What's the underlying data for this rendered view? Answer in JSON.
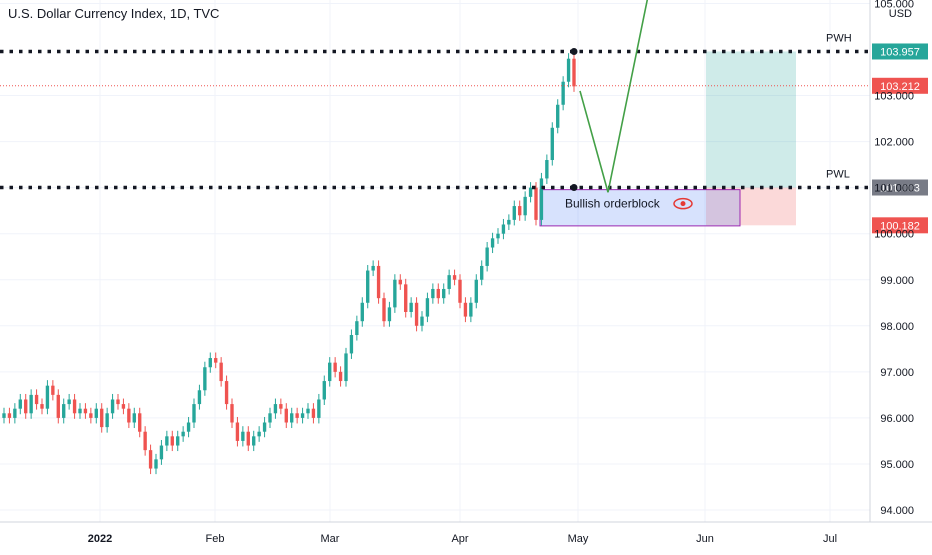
{
  "header": {
    "title": "U.S. Dollar Currency Index, 1D, TVC"
  },
  "chart_data": {
    "type": "candlestick",
    "title": "U.S. Dollar Currency Index, 1D, TVC",
    "currency": "USD",
    "x_axis": {
      "ticks": [
        "2022",
        "Feb",
        "Mar",
        "Apr",
        "May",
        "Jun",
        "Jul"
      ]
    },
    "y_axis": {
      "ticks": [
        94.0,
        95.0,
        96.0,
        97.0,
        98.0,
        99.0,
        100.0,
        101.0,
        102.0,
        103.0,
        105.0
      ],
      "range": [
        93.6,
        105.0
      ]
    },
    "levels": [
      {
        "label": "PWH",
        "value": 103.957,
        "value_label": "103.957",
        "color": "#26a69a"
      },
      {
        "label": "PWL",
        "value": 101.003,
        "value_label": "101.003",
        "color": "#787b86"
      }
    ],
    "last_price": {
      "value": 103.212,
      "label": "103.212",
      "color": "#ef5350"
    },
    "stop_level": {
      "value": 100.182,
      "label": "100.182",
      "color": "#ef5350"
    },
    "annotations": [
      {
        "type": "box",
        "label": "Bullish orderblock",
        "y_range": [
          100.3,
          101.0
        ]
      },
      {
        "type": "position",
        "target": 103.957,
        "entry": 101.003,
        "stop": 100.182
      }
    ],
    "closes": [
      96.1,
      96.0,
      96.2,
      96.4,
      96.1,
      96.5,
      96.3,
      96.2,
      96.7,
      96.5,
      96.0,
      96.3,
      96.4,
      96.1,
      96.2,
      96.1,
      96.0,
      96.2,
      95.8,
      96.1,
      96.4,
      96.3,
      96.2,
      95.9,
      96.1,
      95.7,
      95.3,
      94.9,
      95.1,
      95.4,
      95.6,
      95.4,
      95.6,
      95.7,
      95.9,
      96.3,
      96.6,
      97.1,
      97.3,
      97.2,
      96.8,
      96.3,
      95.9,
      95.5,
      95.7,
      95.4,
      95.6,
      95.7,
      95.9,
      96.1,
      96.3,
      96.2,
      95.9,
      96.1,
      96.0,
      96.1,
      96.2,
      96.0,
      96.4,
      96.8,
      97.2,
      97.0,
      96.8,
      97.4,
      97.8,
      98.1,
      98.5,
      99.2,
      99.3,
      98.6,
      98.1,
      98.4,
      99.0,
      98.9,
      98.3,
      98.5,
      98.0,
      98.2,
      98.6,
      98.8,
      98.6,
      98.8,
      99.1,
      99.0,
      98.5,
      98.2,
      98.5,
      99.0,
      99.3,
      99.7,
      99.9,
      100.0,
      100.2,
      100.3,
      100.6,
      100.4,
      100.8,
      101.0,
      100.3,
      101.2,
      101.6,
      102.3,
      102.8,
      103.3,
      103.8,
      103.2
    ]
  }
}
